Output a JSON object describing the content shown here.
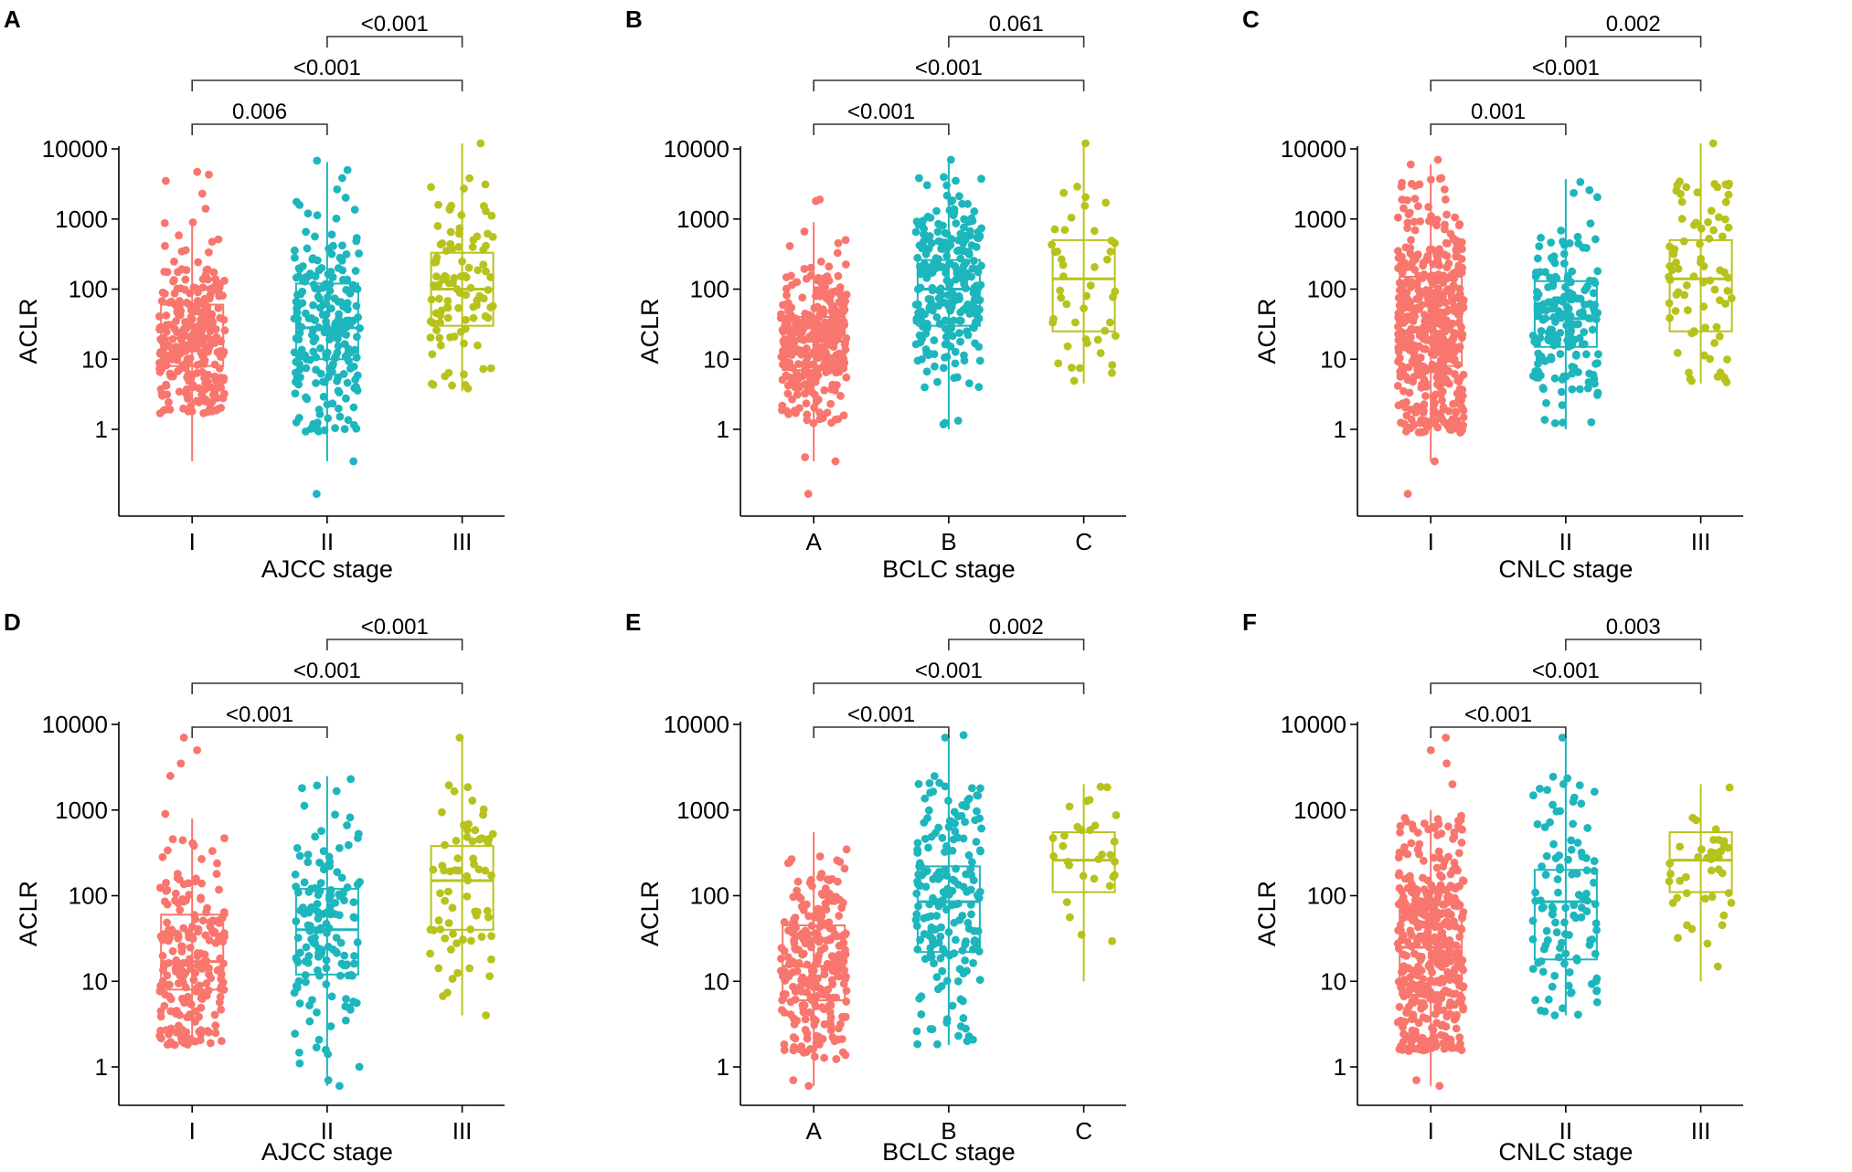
{
  "figure": {
    "colors": [
      "#F8766D",
      "#1DB6BD",
      "#B7C31C"
    ],
    "y_ticks": [
      "10000",
      "1000",
      "100",
      "10",
      "1"
    ],
    "panels": [
      {
        "id": "A",
        "label": "A",
        "chart_data": {
          "type": "box-jitter",
          "title": "",
          "xlabel": "AJCC stage",
          "ylabel": "ACLR",
          "categories": [
            "I",
            "II",
            "III"
          ],
          "y_scale": "log10",
          "ylim": [
            0.1,
            10000
          ],
          "boxes": [
            {
              "q1": 8,
              "median": 20,
              "q3": 60,
              "lower": 0.35,
              "upper": 1000,
              "n": 280,
              "jitter_min": 1.6,
              "jitter_max": 900,
              "outliers": [
                1400,
                2300,
                3500,
                4700,
                4300
              ]
            },
            {
              "q1": 10,
              "median": 28,
              "q3": 120,
              "lower": 0.35,
              "upper": 6500,
              "n": 220,
              "jitter_min": 0.9,
              "jitter_max": 4000,
              "outliers": [
                0.12,
                0.35,
                5000,
                6800
              ]
            },
            {
              "q1": 30,
              "median": 100,
              "q3": 330,
              "lower": 3.5,
              "upper": 12000,
              "n": 100,
              "jitter_min": 3.8,
              "jitter_max": 4000,
              "outliers": [
                12000
              ]
            }
          ],
          "comparisons": [
            {
              "from": 0,
              "to": 1,
              "label": "0.006"
            },
            {
              "from": 0,
              "to": 2,
              "label": "<0.001"
            },
            {
              "from": 1,
              "to": 2,
              "label": "<0.001"
            }
          ]
        }
      },
      {
        "id": "B",
        "label": "B",
        "chart_data": {
          "type": "box-jitter",
          "title": "",
          "xlabel": "BCLC stage",
          "ylabel": "ACLR",
          "categories": [
            "A",
            "B",
            "C"
          ],
          "y_scale": "log10",
          "ylim": [
            0.1,
            10000
          ],
          "boxes": [
            {
              "q1": 7,
              "median": 18,
              "q3": 40,
              "lower": 0.35,
              "upper": 900,
              "n": 320,
              "jitter_min": 1.2,
              "jitter_max": 700,
              "outliers": [
                0.12,
                0.35,
                0.4,
                1800,
                1900
              ]
            },
            {
              "q1": 30,
              "median": 100,
              "q3": 260,
              "lower": 1.0,
              "upper": 7000,
              "n": 260,
              "jitter_min": 1.1,
              "jitter_max": 5000,
              "outliers": [
                7000
              ]
            },
            {
              "q1": 25,
              "median": 140,
              "q3": 500,
              "lower": 4.5,
              "upper": 12000,
              "n": 45,
              "jitter_min": 4.5,
              "jitter_max": 3500,
              "outliers": [
                12000
              ]
            }
          ],
          "comparisons": [
            {
              "from": 0,
              "to": 1,
              "label": "<0.001"
            },
            {
              "from": 0,
              "to": 2,
              "label": "<0.001"
            },
            {
              "from": 1,
              "to": 2,
              "label": "0.061"
            }
          ]
        }
      },
      {
        "id": "C",
        "label": "C",
        "chart_data": {
          "type": "box-jitter",
          "title": "",
          "xlabel": "CNLC stage",
          "ylabel": "ACLR",
          "categories": [
            "I",
            "II",
            "III"
          ],
          "y_scale": "log10",
          "ylim": [
            0.1,
            10000
          ],
          "boxes": [
            {
              "q1": 8,
              "median": 25,
              "q3": 150,
              "lower": 0.35,
              "upper": 6000,
              "n": 480,
              "jitter_min": 0.9,
              "jitter_max": 4000,
              "outliers": [
                0.12,
                0.35,
                6000,
                7000
              ]
            },
            {
              "q1": 15,
              "median": 38,
              "q3": 130,
              "lower": 1.0,
              "upper": 3700,
              "n": 180,
              "jitter_min": 1.0,
              "jitter_max": 3500,
              "outliers": []
            },
            {
              "q1": 25,
              "median": 140,
              "q3": 500,
              "lower": 4.5,
              "upper": 12000,
              "n": 80,
              "jitter_min": 4.5,
              "jitter_max": 3500,
              "outliers": [
                12000
              ]
            }
          ],
          "comparisons": [
            {
              "from": 0,
              "to": 1,
              "label": "0.001"
            },
            {
              "from": 0,
              "to": 2,
              "label": "<0.001"
            },
            {
              "from": 1,
              "to": 2,
              "label": "0.002"
            }
          ]
        }
      },
      {
        "id": "D",
        "label": "D",
        "chart_data": {
          "type": "box-jitter",
          "title": "",
          "xlabel": "AJCC stage",
          "ylabel": "ACLR",
          "categories": [
            "I",
            "II",
            "III"
          ],
          "y_scale": "log10",
          "ylim": [
            0.5,
            10000
          ],
          "boxes": [
            {
              "q1": 8,
              "median": 17,
              "q3": 60,
              "lower": 1.8,
              "upper": 800,
              "n": 220,
              "jitter_min": 1.8,
              "jitter_max": 500,
              "outliers": [
                900,
                2500,
                3500,
                5000,
                7000
              ]
            },
            {
              "q1": 12,
              "median": 40,
              "q3": 120,
              "lower": 0.6,
              "upper": 2500,
              "n": 150,
              "jitter_min": 1.0,
              "jitter_max": 2400,
              "outliers": [
                0.6,
                0.7
              ]
            },
            {
              "q1": 40,
              "median": 150,
              "q3": 380,
              "lower": 4.0,
              "upper": 7000,
              "n": 70,
              "jitter_min": 4.0,
              "jitter_max": 2000,
              "outliers": [
                7000
              ]
            }
          ],
          "comparisons": [
            {
              "from": 0,
              "to": 1,
              "label": "<0.001"
            },
            {
              "from": 0,
              "to": 2,
              "label": "<0.001"
            },
            {
              "from": 1,
              "to": 2,
              "label": "<0.001"
            }
          ]
        }
      },
      {
        "id": "E",
        "label": "E",
        "chart_data": {
          "type": "box-jitter",
          "title": "",
          "xlabel": "BCLC stage",
          "ylabel": "ACLR",
          "categories": [
            "A",
            "B",
            "C"
          ],
          "y_scale": "log10",
          "ylim": [
            0.5,
            10000
          ],
          "boxes": [
            {
              "q1": 6,
              "median": 15,
              "q3": 45,
              "lower": 0.6,
              "upper": 550,
              "n": 260,
              "jitter_min": 1.2,
              "jitter_max": 400,
              "outliers": [
                0.6,
                0.7
              ]
            },
            {
              "q1": 22,
              "median": 85,
              "q3": 220,
              "lower": 1.8,
              "upper": 7500,
              "n": 190,
              "jitter_min": 1.8,
              "jitter_max": 2500,
              "outliers": [
                7000,
                7500
              ]
            },
            {
              "q1": 110,
              "median": 260,
              "q3": 550,
              "lower": 10,
              "upper": 2000,
              "n": 30,
              "jitter_min": 10,
              "jitter_max": 2000,
              "outliers": []
            }
          ],
          "comparisons": [
            {
              "from": 0,
              "to": 1,
              "label": "<0.001"
            },
            {
              "from": 0,
              "to": 2,
              "label": "<0.001"
            },
            {
              "from": 1,
              "to": 2,
              "label": "0.002"
            }
          ]
        }
      },
      {
        "id": "F",
        "label": "F",
        "chart_data": {
          "type": "box-jitter",
          "title": "",
          "xlabel": "CNLC stage",
          "ylabel": "ACLR",
          "categories": [
            "I",
            "II",
            "III"
          ],
          "y_scale": "log10",
          "ylim": [
            0.5,
            10000
          ],
          "boxes": [
            {
              "q1": 7,
              "median": 25,
              "q3": 80,
              "lower": 0.6,
              "upper": 1000,
              "n": 420,
              "jitter_min": 1.5,
              "jitter_max": 900,
              "outliers": [
                0.6,
                0.7,
                2000,
                3500,
                5000,
                7000
              ]
            },
            {
              "q1": 18,
              "median": 85,
              "q3": 200,
              "lower": 4.0,
              "upper": 7000,
              "n": 110,
              "jitter_min": 4.0,
              "jitter_max": 2500,
              "outliers": [
                7000
              ]
            },
            {
              "q1": 110,
              "median": 260,
              "q3": 550,
              "lower": 10,
              "upper": 2000,
              "n": 40,
              "jitter_min": 10,
              "jitter_max": 2000,
              "outliers": []
            }
          ],
          "comparisons": [
            {
              "from": 0,
              "to": 1,
              "label": "<0.001"
            },
            {
              "from": 0,
              "to": 2,
              "label": "<0.001"
            },
            {
              "from": 1,
              "to": 2,
              "label": "0.003"
            }
          ]
        }
      }
    ]
  }
}
